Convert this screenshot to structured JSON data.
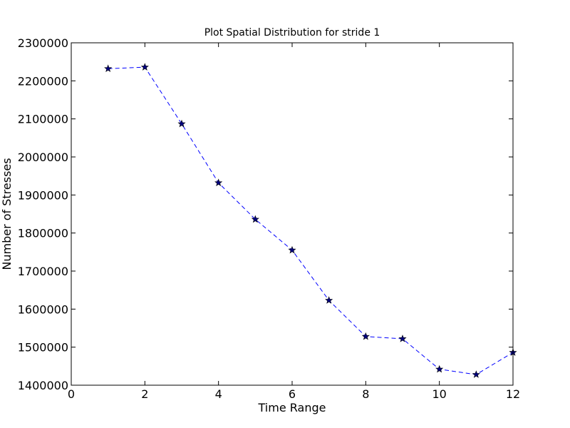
{
  "chart_data": {
    "type": "line",
    "title": "Plot Spatial Distribution for stride 1",
    "xlabel": "Time Range",
    "ylabel": "Number of Stresses",
    "xlim": [
      0,
      12
    ],
    "ylim": [
      1400000,
      2300000
    ],
    "xticks": [
      0,
      2,
      4,
      6,
      8,
      10,
      12
    ],
    "yticks": [
      1400000,
      1500000,
      1600000,
      1700000,
      1800000,
      1900000,
      2000000,
      2100000,
      2200000,
      2300000
    ],
    "grid": false,
    "series": [
      {
        "x": [
          1,
          2,
          3,
          4,
          5,
          6,
          7,
          8,
          9,
          10,
          11,
          12
        ],
        "y": [
          2232000,
          2236000,
          2087000,
          1932000,
          1836000,
          1755000,
          1623000,
          1528000,
          1522000,
          1442000,
          1428000,
          1486000
        ],
        "color": "#0000ff",
        "line_style": "dashed",
        "marker": "star",
        "marker_color": "#000080"
      }
    ]
  }
}
